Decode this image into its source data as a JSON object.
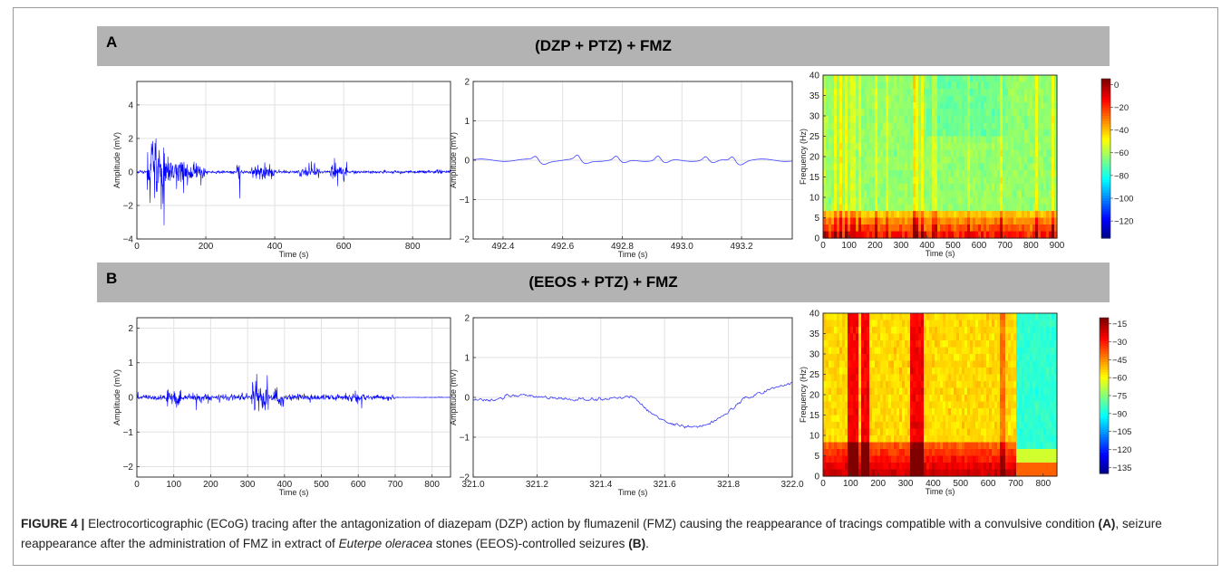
{
  "panels": [
    {
      "letter": "A",
      "title": "(DZP + PTZ) + FMZ",
      "charts": [
        {
          "type": "line",
          "xlabel": "Time (s)",
          "ylabel": "Amplitude (mV)",
          "xticks": [
            "0",
            "200",
            "400",
            "600",
            "800"
          ],
          "yticks": [
            "4",
            "2",
            "0",
            "−2",
            "−4"
          ],
          "xlim": [
            0,
            910
          ],
          "ylim": [
            -4,
            5.4
          ],
          "color": "#0000ff",
          "bursts": [
            [
              30,
              80,
              4.5
            ],
            [
              80,
              150,
              1.8
            ],
            [
              150,
              200,
              0.8
            ],
            [
              290,
              300,
              1.8
            ],
            [
              330,
              400,
              0.9
            ],
            [
              470,
              530,
              0.6
            ],
            [
              560,
              610,
              0.8
            ],
            [
              870,
              890,
              0.3
            ]
          ]
        },
        {
          "type": "line",
          "xlabel": "Time (s)",
          "ylabel": "Amplitude (mV)",
          "xticks": [
            "492.4",
            "492.6",
            "492.8",
            "493.0",
            "493.2"
          ],
          "yticks": [
            "2",
            "1",
            "0",
            "−1",
            "−2"
          ],
          "xlim": [
            492.3,
            493.37
          ],
          "ylim": [
            -2,
            2
          ],
          "color": "#4040ff"
        },
        {
          "type": "heatmap",
          "xlabel": "Time (s)",
          "ylabel": "Frequency (Hz)",
          "xticks": [
            "0",
            "100",
            "200",
            "300",
            "400",
            "500",
            "600",
            "700",
            "800",
            "900"
          ],
          "yticks": [
            "40",
            "35",
            "30",
            "25",
            "20",
            "15",
            "10",
            "5",
            "0"
          ],
          "xlim": [
            0,
            900
          ],
          "ylim": [
            0,
            40
          ],
          "colorbar": [
            "0",
            "−20",
            "−40",
            "−60",
            "−80",
            "−100",
            "−120"
          ],
          "clim": [
            -135,
            5
          ]
        }
      ]
    },
    {
      "letter": "B",
      "title": "(EEOS + PTZ) + FMZ",
      "charts": [
        {
          "type": "line",
          "xlabel": "Time (s)",
          "ylabel": "Amplitude (mV)",
          "xticks": [
            "0",
            "100",
            "200",
            "300",
            "400",
            "500",
            "600",
            "700",
            "800"
          ],
          "yticks": [
            "2",
            "1",
            "0",
            "−1",
            "−2"
          ],
          "xlim": [
            0,
            850
          ],
          "ylim": [
            -2.3,
            2.3
          ],
          "color": "#0000ff",
          "bursts": [
            [
              0,
              700,
              0.15
            ],
            [
              80,
              120,
              0.5
            ],
            [
              160,
              200,
              0.3
            ],
            [
              310,
              360,
              0.8
            ],
            [
              370,
              400,
              0.5
            ],
            [
              580,
              620,
              0.35
            ]
          ]
        },
        {
          "type": "line",
          "xlabel": "Time (s)",
          "ylabel": "Amplitude (mV)",
          "xticks": [
            "321.0",
            "321.2",
            "321.4",
            "321.6",
            "321.8",
            "322.0"
          ],
          "yticks": [
            "2",
            "1",
            "0",
            "−1",
            "−2"
          ],
          "xlim": [
            321,
            322
          ],
          "ylim": [
            -2,
            2
          ],
          "color": "#3a3aff"
        },
        {
          "type": "heatmap",
          "xlabel": "Time (s)",
          "ylabel": "Frequency (Hz)",
          "xticks": [
            "0",
            "100",
            "200",
            "300",
            "400",
            "500",
            "600",
            "700",
            "800"
          ],
          "yticks": [
            "40",
            "35",
            "30",
            "25",
            "20",
            "15",
            "10",
            "5",
            "0"
          ],
          "xlim": [
            0,
            850
          ],
          "ylim": [
            0,
            40
          ],
          "colorbar": [
            "−15",
            "−30",
            "−45",
            "−60",
            "−75",
            "−90",
            "−105",
            "−120",
            "−135"
          ],
          "clim": [
            -140,
            -10
          ]
        }
      ]
    }
  ],
  "caption": {
    "label": "FIGURE 4 |",
    "text1": "Electrocorticographic (ECoG) tracing after the antagonization of diazepam (DZP) action by flumazenil (FMZ) causing the reappearance of tracings compatible with a convulsive condition",
    "ref_a": "(A)",
    "text2": ", seizure reappearance after the administration of FMZ in extract of",
    "species": "Euterpe oleracea",
    "text3": "stones (EEOS)-controlled seizures",
    "ref_b": "(B)",
    "end": "."
  }
}
